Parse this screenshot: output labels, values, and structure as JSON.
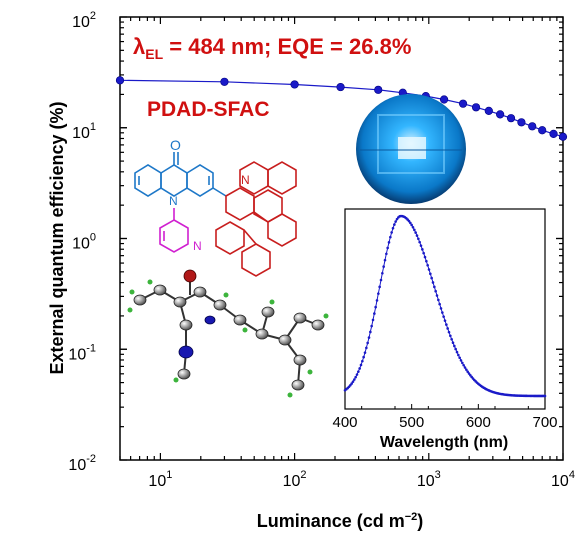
{
  "chart_data": {
    "type": "scatter",
    "xlabel": "Luminance (cd m",
    "xlabel_sup": "−2",
    "xlabel_end": ")",
    "ylabel": "External quantum efficiency (%)",
    "xscale": "log",
    "yscale": "log",
    "xlim": [
      5,
      10000
    ],
    "ylim": [
      0.01,
      100
    ],
    "x_ticks": [
      {
        "base": "10",
        "exp": "1",
        "value": 10
      },
      {
        "base": "10",
        "exp": "2",
        "value": 100
      },
      {
        "base": "10",
        "exp": "3",
        "value": 1000
      },
      {
        "base": "10",
        "exp": "4",
        "value": 10000
      }
    ],
    "y_ticks": [
      {
        "base": "10",
        "exp": "-2",
        "value": 0.01
      },
      {
        "base": "10",
        "exp": "-1",
        "value": 0.1
      },
      {
        "base": "10",
        "exp": "0",
        "value": 1
      },
      {
        "base": "10",
        "exp": "1",
        "value": 10
      },
      {
        "base": "10",
        "exp": "2",
        "value": 100
      }
    ],
    "series": [
      {
        "color": "#1a1ac8",
        "x": [
          5,
          30,
          100,
          220,
          420,
          640,
          950,
          1300,
          1800,
          2250,
          2800,
          3400,
          4100,
          4900,
          5900,
          7000,
          8500,
          10000
        ],
        "y": [
          26.8,
          26.0,
          24.6,
          23.3,
          22.0,
          20.7,
          19.3,
          18.0,
          16.5,
          15.3,
          14.2,
          13.2,
          12.2,
          11.2,
          10.3,
          9.5,
          8.8,
          8.3
        ]
      }
    ],
    "annotations": {
      "lambda_symbol": "λ",
      "lambda_sub": "EL",
      "headline_rest": " = 484 nm; EQE = 26.8%",
      "compound": "PDAD-SFAC",
      "headline_color": "#d01010"
    },
    "inset": {
      "type": "line",
      "xlabel": "Wavelength (nm)",
      "xlim": [
        400,
        700
      ],
      "x_ticks": [
        "400",
        "500",
        "600",
        "700"
      ],
      "peak_nm": 484,
      "color": "#1a1ac8"
    }
  },
  "molecule": {
    "oxygen_label": "O",
    "nitrogen_label": "N",
    "acridone_color": "#1e78c8",
    "pyridine_color": "#d020d0",
    "donor_color": "#c81e1e"
  },
  "device_photo": {
    "color": "#1aa0e8"
  }
}
